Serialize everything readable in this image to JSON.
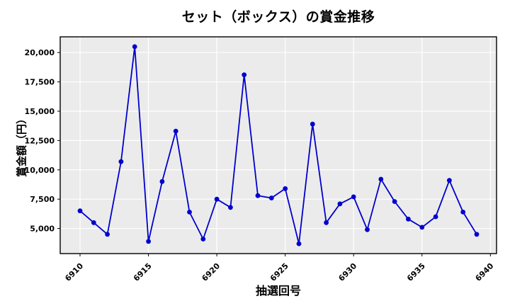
{
  "figure": {
    "title": "セット（ボックス）の賞金推移",
    "x_axis_label": "抽選回号",
    "y_axis_label": "賞金額（円）"
  },
  "chart_data": {
    "type": "line",
    "title": "セット（ボックス）の賞金推移",
    "xlabel": "抽選回号",
    "ylabel": "賞金額（円）",
    "x": [
      6910,
      6911,
      6912,
      6913,
      6914,
      6915,
      6916,
      6917,
      6918,
      6919,
      6920,
      6921,
      6922,
      6923,
      6924,
      6925,
      6926,
      6927,
      6928,
      6929,
      6930,
      6931,
      6932,
      6933,
      6934,
      6935,
      6936,
      6937,
      6938,
      6939
    ],
    "values": [
      6500,
      5500,
      4500,
      10700,
      20500,
      3900,
      9000,
      13300,
      6400,
      4100,
      7500,
      6800,
      18100,
      7800,
      7600,
      8400,
      3700,
      13900,
      5500,
      7100,
      7700,
      4900,
      9200,
      7300,
      5800,
      5100,
      6000,
      9100,
      6400,
      4500
    ],
    "xticks": [
      6910,
      6915,
      6920,
      6925,
      6930,
      6935,
      6940
    ],
    "yticks": [
      5000,
      7500,
      10000,
      12500,
      15000,
      17500,
      20000
    ],
    "ytick_labels": [
      "5,000",
      "7,500",
      "10,000",
      "12,500",
      "15,000",
      "17,500",
      "20,000"
    ],
    "xlim": [
      6908.55,
      6940.45
    ],
    "ylim": [
      2860,
      21340
    ],
    "x_tick_rotation": 45,
    "grid": true,
    "legend_position": "none",
    "line_color": "#0000CD",
    "marker": "circle",
    "marker_color": "#0000CD",
    "plot_bg_color": "#EBEBEB",
    "grid_color": "#FFFFFF",
    "spine_color": "#000000",
    "figure_bg_color": "#FFFFFF",
    "text_color": "#000000"
  }
}
